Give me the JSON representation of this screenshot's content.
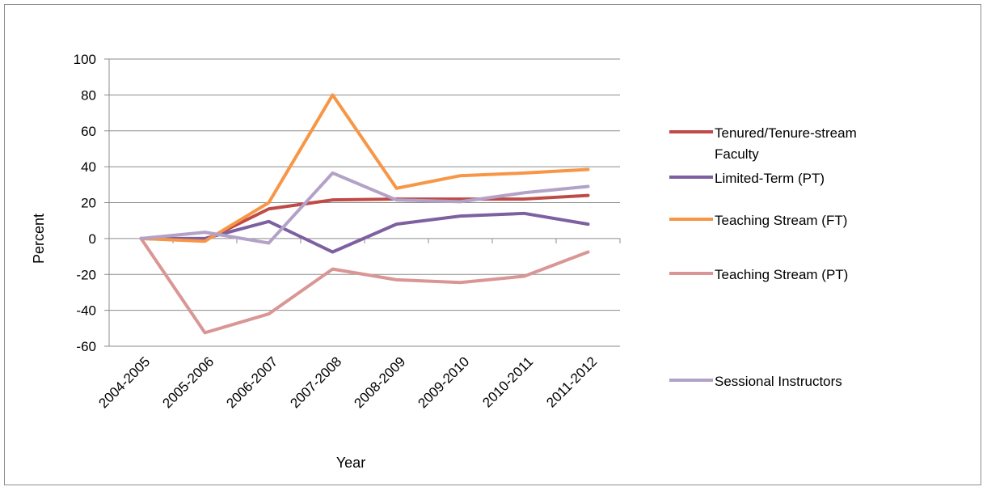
{
  "chart_data": {
    "type": "line",
    "title": "",
    "xlabel": "Year",
    "ylabel": "Percent",
    "ylim": [
      -60,
      100
    ],
    "yticks": [
      100,
      80,
      60,
      40,
      20,
      0,
      -20,
      -40,
      -60
    ],
    "categories": [
      "2004-2005",
      "2005-2006",
      "2006-2007",
      "2007-2008",
      "2008-2009",
      "2009-2010",
      "2010-2011",
      "2011-2012"
    ],
    "grid": "horizontal",
    "legend_position": "right",
    "series": [
      {
        "name": "Tenured/Tenure-stream Faculty",
        "label_lines": [
          "Tenured/Tenure-stream",
          "Faculty"
        ],
        "color": "#be4b48",
        "values": [
          0,
          -1,
          16.5,
          21.5,
          22,
          22,
          22,
          24
        ]
      },
      {
        "name": "Limited-Term (PT)",
        "label_lines": [
          "Limited-Term (PT)"
        ],
        "color": "#7d60a0",
        "values": [
          0,
          0,
          9.5,
          -7.5,
          8,
          12.5,
          14,
          8
        ]
      },
      {
        "name": "Teaching Stream (FT)",
        "label_lines": [
          "Teaching Stream (FT)"
        ],
        "color": "#f79646",
        "values": [
          0,
          -1.5,
          20,
          80,
          28,
          35,
          36.5,
          38.5
        ]
      },
      {
        "name": "Teaching Stream (PT)",
        "label_lines": [
          "Teaching Stream (PT)"
        ],
        "color": "#d99694",
        "values": [
          0,
          -52.5,
          -42,
          -17,
          -23,
          -24.5,
          -21,
          -7.5
        ]
      },
      {
        "name": "Sessional Instructors",
        "label_lines": [
          "Sessional Instructors"
        ],
        "color": "#b3a2c7",
        "values": [
          0,
          3.5,
          -2.5,
          36.5,
          21.5,
          20.5,
          25.5,
          29
        ]
      }
    ]
  }
}
